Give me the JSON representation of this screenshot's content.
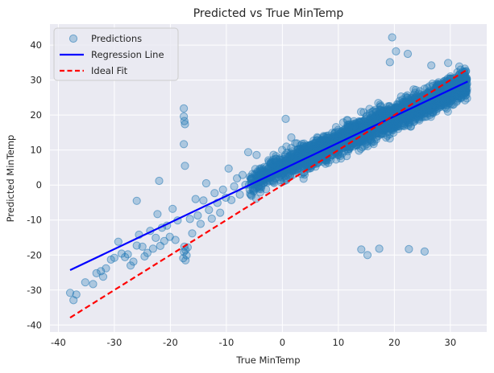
{
  "chart_data": {
    "type": "scatter",
    "title": "Predicted vs True MinTemp",
    "xlabel": "True MinTemp",
    "ylabel": "Predicted MinTemp",
    "xlim": [
      -41.5,
      36.5
    ],
    "ylim": [
      -42,
      46
    ],
    "xticks": [
      -40,
      -30,
      -20,
      -10,
      0,
      10,
      20,
      30
    ],
    "yticks": [
      -40,
      -30,
      -20,
      -10,
      0,
      10,
      20,
      30,
      40
    ],
    "grid": true,
    "legend_position": "upper-left",
    "colors": {
      "background": "#eaeaf2",
      "grid": "#ffffff",
      "points": "#1f77b4",
      "regression": "#0000ff",
      "ideal": "#ff0000"
    },
    "series": [
      {
        "name": "Predictions",
        "kind": "scatter",
        "points": [
          [
            -37.9,
            -30.8
          ],
          [
            -37.3,
            -32.9
          ],
          [
            -36.8,
            -31.3
          ],
          [
            -35.2,
            -27.8
          ],
          [
            -33.8,
            -28.3
          ],
          [
            -33.2,
            -25.2
          ],
          [
            -32.4,
            -24.6
          ],
          [
            -32.0,
            -26.2
          ],
          [
            -31.5,
            -23.8
          ],
          [
            -30.6,
            -21.3
          ],
          [
            -30.0,
            -20.8
          ],
          [
            -29.3,
            -16.2
          ],
          [
            -28.7,
            -19.6
          ],
          [
            -28.1,
            -20.6
          ],
          [
            -27.6,
            -19.8
          ],
          [
            -27.1,
            -23.0
          ],
          [
            -26.6,
            -21.9
          ],
          [
            -26.0,
            -4.5
          ],
          [
            -26.0,
            -17.3
          ],
          [
            -25.6,
            -14.2
          ],
          [
            -25.0,
            -17.6
          ],
          [
            -24.6,
            -20.4
          ],
          [
            -24.1,
            -19.4
          ],
          [
            -23.6,
            -13.1
          ],
          [
            -23.1,
            -18.2
          ],
          [
            -22.6,
            -15.1
          ],
          [
            -22.3,
            -8.3
          ],
          [
            -22.0,
            1.2
          ],
          [
            -21.8,
            -17.4
          ],
          [
            -21.5,
            -12.2
          ],
          [
            -21.1,
            -16.0
          ],
          [
            -20.6,
            -11.6
          ],
          [
            -20.1,
            -14.8
          ],
          [
            -19.6,
            -6.8
          ],
          [
            -19.1,
            -15.7
          ],
          [
            -18.7,
            -10.1
          ],
          [
            -17.6,
            21.9
          ],
          [
            -17.6,
            19.6
          ],
          [
            -17.5,
            18.3
          ],
          [
            -17.4,
            17.4
          ],
          [
            -17.6,
            11.7
          ],
          [
            -17.4,
            5.5
          ],
          [
            -17.5,
            -17.6
          ],
          [
            -17.6,
            -19.1
          ],
          [
            -17.3,
            -18.6
          ],
          [
            -17.1,
            -20.1
          ],
          [
            -17.7,
            -20.9
          ],
          [
            -17.3,
            -21.5
          ],
          [
            -16.9,
            -17.8
          ],
          [
            -16.5,
            -9.7
          ],
          [
            -16.1,
            -13.8
          ],
          [
            -15.5,
            -4.0
          ],
          [
            -15.1,
            -8.7
          ],
          [
            -14.6,
            -11.1
          ],
          [
            -14.1,
            -4.4
          ],
          [
            -13.6,
            0.5
          ],
          [
            -13.1,
            -7.1
          ],
          [
            -12.6,
            -9.6
          ],
          [
            -12.1,
            -2.3
          ],
          [
            -11.6,
            -5.1
          ],
          [
            -11.1,
            -7.9
          ],
          [
            -10.6,
            -1.3
          ],
          [
            -10.1,
            -3.6
          ],
          [
            -9.6,
            4.7
          ],
          [
            -9.1,
            -4.3
          ],
          [
            -8.6,
            -0.4
          ],
          [
            -8.1,
            1.9
          ],
          [
            -7.6,
            -2.7
          ],
          [
            -7.1,
            2.9
          ],
          [
            -6.6,
            0.1
          ],
          [
            -6.1,
            9.4
          ],
          [
            -5.6,
            1.7
          ],
          [
            -4.6,
            8.6
          ],
          [
            0.2,
            7.4
          ],
          [
            0.6,
            18.9
          ],
          [
            1.6,
            13.6
          ],
          [
            2.6,
            11.9
          ],
          [
            14.1,
            -18.4
          ],
          [
            15.2,
            -20.0
          ],
          [
            17.3,
            -18.2
          ],
          [
            22.6,
            -18.3
          ],
          [
            25.4,
            -19.0
          ],
          [
            19.6,
            42.2
          ],
          [
            20.3,
            38.2
          ],
          [
            22.4,
            37.5
          ],
          [
            19.2,
            35.1
          ],
          [
            26.6,
            34.2
          ],
          [
            29.6,
            34.9
          ],
          [
            31.6,
            33.9
          ],
          [
            32.8,
            32.6
          ]
        ]
      },
      {
        "name": "Regression Line",
        "kind": "line",
        "x": [
          -37.9,
          33.1
        ],
        "y": [
          -24.3,
          29.6
        ]
      },
      {
        "name": "Ideal Fit",
        "kind": "line",
        "style": "dashed",
        "x": [
          -37.9,
          33.1
        ],
        "y": [
          -37.9,
          33.1
        ]
      }
    ]
  }
}
